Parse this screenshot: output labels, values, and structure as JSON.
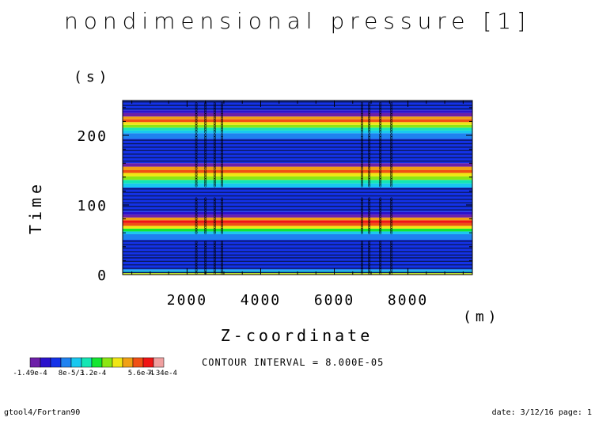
{
  "title": "nondimensional pressure [1]",
  "y_unit": "(s)",
  "x_unit": "(m)",
  "contour_interval": "CONTOUR INTERVAL = 8.000E-05",
  "footer_left": "gtool4/Fortran90",
  "footer_right": "date: 3/12/16 page: 1",
  "chart_data": {
    "type": "heatmap",
    "title": "nondimensional pressure [1]",
    "xlabel": "Z-coordinate",
    "ylabel": "Time",
    "xlim": [
      250,
      9750
    ],
    "ylim": [
      0,
      250
    ],
    "x_ticks": [
      2000,
      4000,
      6000,
      8000
    ],
    "y_ticks": [
      0,
      100,
      200
    ],
    "x_tick_labels": [
      "2000",
      "4000",
      "6000",
      "8000"
    ],
    "y_tick_labels": [
      "0",
      "100",
      "200"
    ],
    "value_range": [
      -0.000149,
      0.000734
    ],
    "colorbar": {
      "colors": [
        "#6d1fa8",
        "#2b12cc",
        "#1432e8",
        "#1f82f0",
        "#19c8f0",
        "#14e6b4",
        "#14e632",
        "#8ce614",
        "#f0e614",
        "#f0a014",
        "#f05014",
        "#f01414",
        "#f0a0a0"
      ],
      "tick_labels": [
        "-1.49e-4",
        "8e-5/3",
        "1.2e-4",
        "5.6e-4",
        "7.34e-4"
      ]
    },
    "bands": [
      {
        "t0": 0,
        "t1": 2,
        "c": 8
      },
      {
        "t0": 2,
        "t1": 4,
        "c": 6
      },
      {
        "t0": 4,
        "t1": 6,
        "c": 4
      },
      {
        "t0": 6,
        "t1": 8,
        "c": 3
      },
      {
        "t0": 8,
        "t1": 50,
        "c": 2
      },
      {
        "t0": 50,
        "t1": 58,
        "c": 3
      },
      {
        "t0": 58,
        "t1": 62,
        "c": 4
      },
      {
        "t0": 62,
        "t1": 66,
        "c": 6
      },
      {
        "t0": 66,
        "t1": 70,
        "c": 8
      },
      {
        "t0": 70,
        "t1": 74,
        "c": 10
      },
      {
        "t0": 74,
        "t1": 78,
        "c": 11
      },
      {
        "t0": 78,
        "t1": 82,
        "c": 9
      },
      {
        "t0": 82,
        "t1": 86,
        "c": 0
      },
      {
        "t0": 86,
        "t1": 90,
        "c": 1
      },
      {
        "t0": 90,
        "t1": 125,
        "c": 2
      },
      {
        "t0": 125,
        "t1": 131,
        "c": 4
      },
      {
        "t0": 131,
        "t1": 136,
        "c": 5
      },
      {
        "t0": 136,
        "t1": 141,
        "c": 7
      },
      {
        "t0": 141,
        "t1": 146,
        "c": 8
      },
      {
        "t0": 146,
        "t1": 150,
        "c": 10
      },
      {
        "t0": 150,
        "t1": 155,
        "c": 9
      },
      {
        "t0": 155,
        "t1": 160,
        "c": 0
      },
      {
        "t0": 160,
        "t1": 195,
        "c": 2
      },
      {
        "t0": 195,
        "t1": 203,
        "c": 3
      },
      {
        "t0": 203,
        "t1": 207,
        "c": 4
      },
      {
        "t0": 207,
        "t1": 211,
        "c": 5
      },
      {
        "t0": 211,
        "t1": 215,
        "c": 7
      },
      {
        "t0": 215,
        "t1": 219,
        "c": 8
      },
      {
        "t0": 219,
        "t1": 223,
        "c": 10
      },
      {
        "t0": 223,
        "t1": 227,
        "c": 9
      },
      {
        "t0": 227,
        "t1": 232,
        "c": 0
      },
      {
        "t0": 232,
        "t1": 236,
        "c": 1
      },
      {
        "t0": 236,
        "t1": 250,
        "c": 2
      }
    ],
    "contour_lines": [
      3,
      9,
      14,
      19,
      24,
      28,
      33,
      38,
      43,
      48,
      93,
      98,
      103,
      108,
      113,
      118,
      123,
      163,
      168,
      173,
      178,
      183,
      188,
      193,
      238,
      243,
      248
    ],
    "annotation_columns": [
      2250,
      2500,
      2750,
      2950,
      6750,
      6950,
      7250,
      7550
    ]
  }
}
